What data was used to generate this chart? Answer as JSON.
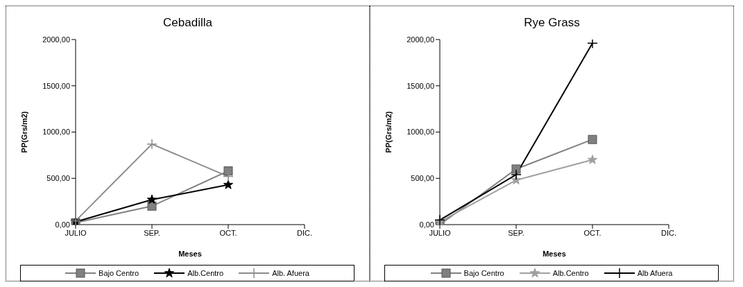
{
  "chart_data": [
    {
      "type": "line",
      "title": "Cebadilla",
      "xlabel": "Meses",
      "ylabel": "PP(Grs/m2)",
      "categories": [
        "JULIO",
        "SEP.",
        "OCT.",
        "DIC."
      ],
      "series": [
        {
          "name": "Bajo Centro",
          "color": "#808080",
          "marker": "square",
          "values": [
            20,
            200,
            580,
            null
          ]
        },
        {
          "name": "Alb.Centro",
          "color": "#000000",
          "marker": "star",
          "values": [
            30,
            270,
            430,
            null
          ]
        },
        {
          "name": "Alb. Afuera",
          "color": "#8c8c8c",
          "marker": "cross",
          "values": [
            40,
            870,
            520,
            null
          ]
        }
      ],
      "ylim": [
        0,
        2000
      ],
      "yticks": [
        {
          "value": 0,
          "label": "0,00"
        },
        {
          "value": 500,
          "label": "500,00"
        },
        {
          "value": 1000,
          "label": "1000,00"
        },
        {
          "value": 1500,
          "label": "1500,00"
        },
        {
          "value": 2000,
          "label": "2000,00"
        }
      ],
      "grid": false,
      "legend": "bottom"
    },
    {
      "type": "line",
      "title": "Rye Grass",
      "xlabel": "Meses",
      "ylabel": "PP(Grs/m2)",
      "categories": [
        "JULIO",
        "SEP.",
        "OCT.",
        "DIC."
      ],
      "series": [
        {
          "name": "Bajo Centro",
          "color": "#808080",
          "marker": "square",
          "values": [
            0,
            600,
            920,
            null
          ]
        },
        {
          "name": "Alb.Centro",
          "color": "#a0a0a0",
          "marker": "star",
          "values": [
            30,
            480,
            700,
            null
          ]
        },
        {
          "name": "Alb Afuera",
          "color": "#000000",
          "marker": "cross",
          "values": [
            50,
            540,
            1960,
            null
          ]
        }
      ],
      "ylim": [
        0,
        2000
      ],
      "yticks": [
        {
          "value": 0,
          "label": "0,00"
        },
        {
          "value": 500,
          "label": "500,00"
        },
        {
          "value": 1000,
          "label": "1000,00"
        },
        {
          "value": 1500,
          "label": "1500,00"
        },
        {
          "value": 2000,
          "label": "2000,00"
        }
      ],
      "grid": false,
      "legend": "bottom"
    }
  ]
}
